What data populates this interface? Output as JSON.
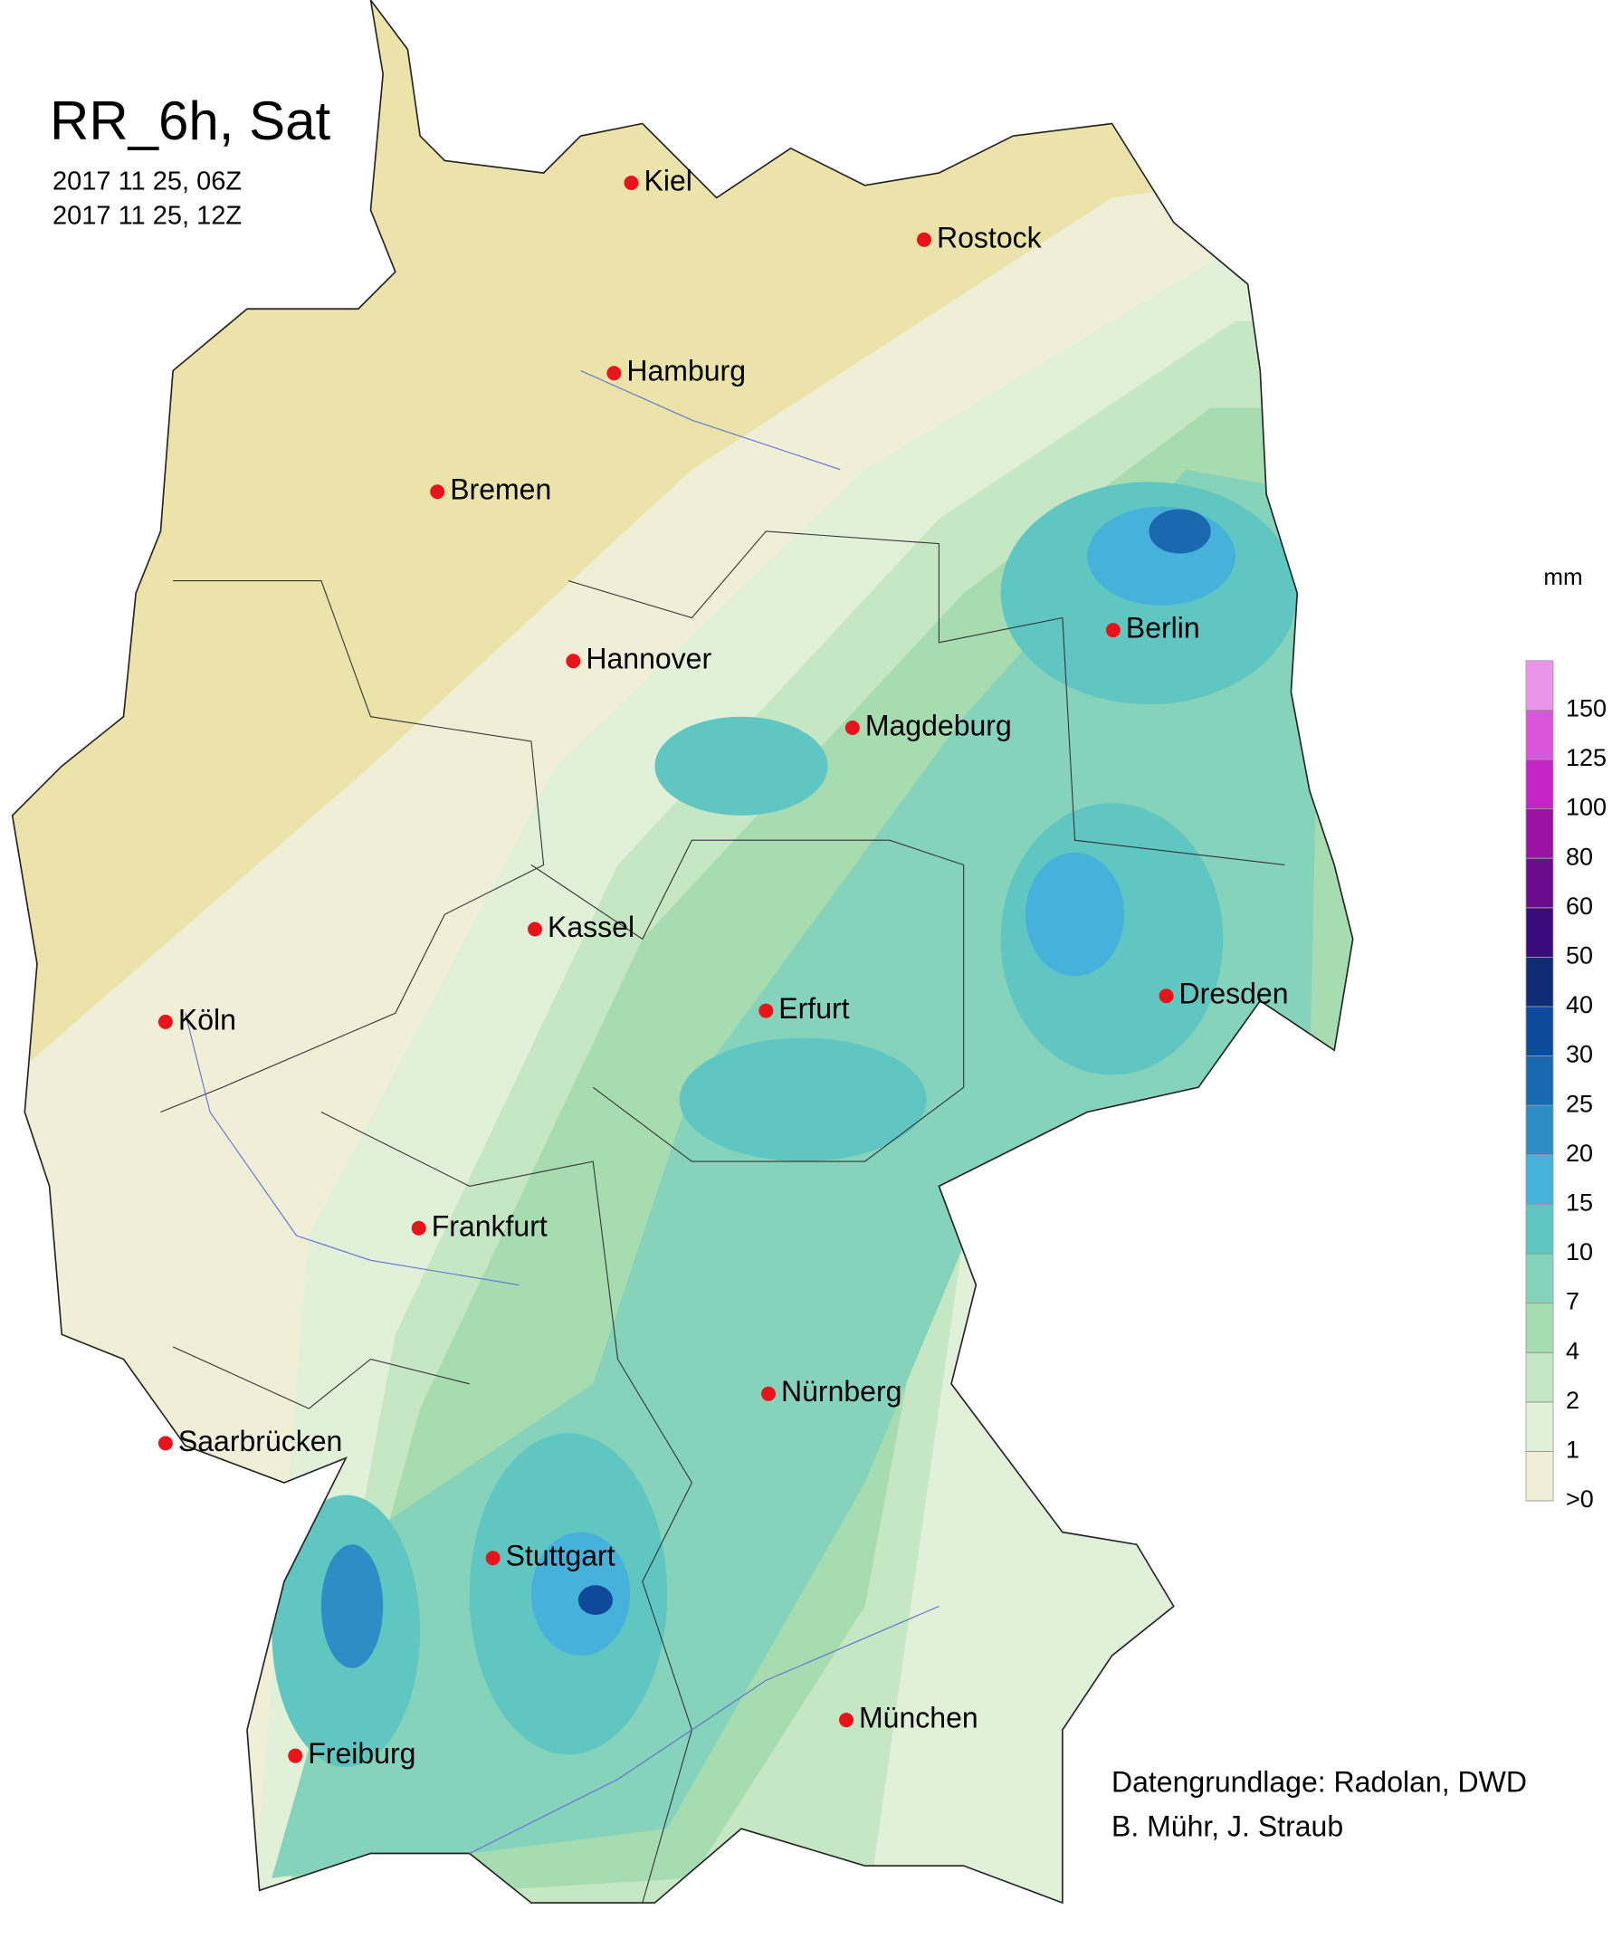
{
  "title": "RR_6h, Sat",
  "dates": [
    "2017 11 25, 06Z",
    "2017 11 25, 12Z"
  ],
  "cities": [
    {
      "name": "Kiel"
    },
    {
      "name": "Rostock"
    },
    {
      "name": "Hamburg"
    },
    {
      "name": "Bremen"
    },
    {
      "name": "Hannover"
    },
    {
      "name": "Berlin"
    },
    {
      "name": "Magdeburg"
    },
    {
      "name": "Kassel"
    },
    {
      "name": "Köln"
    },
    {
      "name": "Erfurt"
    },
    {
      "name": "Dresden"
    },
    {
      "name": "Frankfurt"
    },
    {
      "name": "Nürnberg"
    },
    {
      "name": "Saarbrücken"
    },
    {
      "name": "Stuttgart"
    },
    {
      "name": "München"
    },
    {
      "name": "Freiburg"
    }
  ],
  "legend": {
    "unit": "mm",
    "ticks": [
      {
        "value": 0,
        "label": ">0"
      },
      1,
      2,
      4,
      7,
      10,
      15,
      20,
      25,
      30,
      40,
      50,
      60,
      80,
      100,
      125,
      150
    ],
    "colors": [
      "#f1eed8",
      "#e1f0d8",
      "#c6e7c4",
      "#a6dcb0",
      "#86d3bc",
      "#5fc6c2",
      "#46b1da",
      "#2f8dc6",
      "#1a68ae",
      "#0e4a9b",
      "#112c77",
      "#3a0b7b",
      "#6a0c8c",
      "#9c12a1",
      "#c424c6",
      "#da55da",
      "#ea94ea"
    ]
  },
  "credits": [
    "Datengrundlage: Radolan, DWD",
    "B. Mühr, J. Straub"
  ]
}
